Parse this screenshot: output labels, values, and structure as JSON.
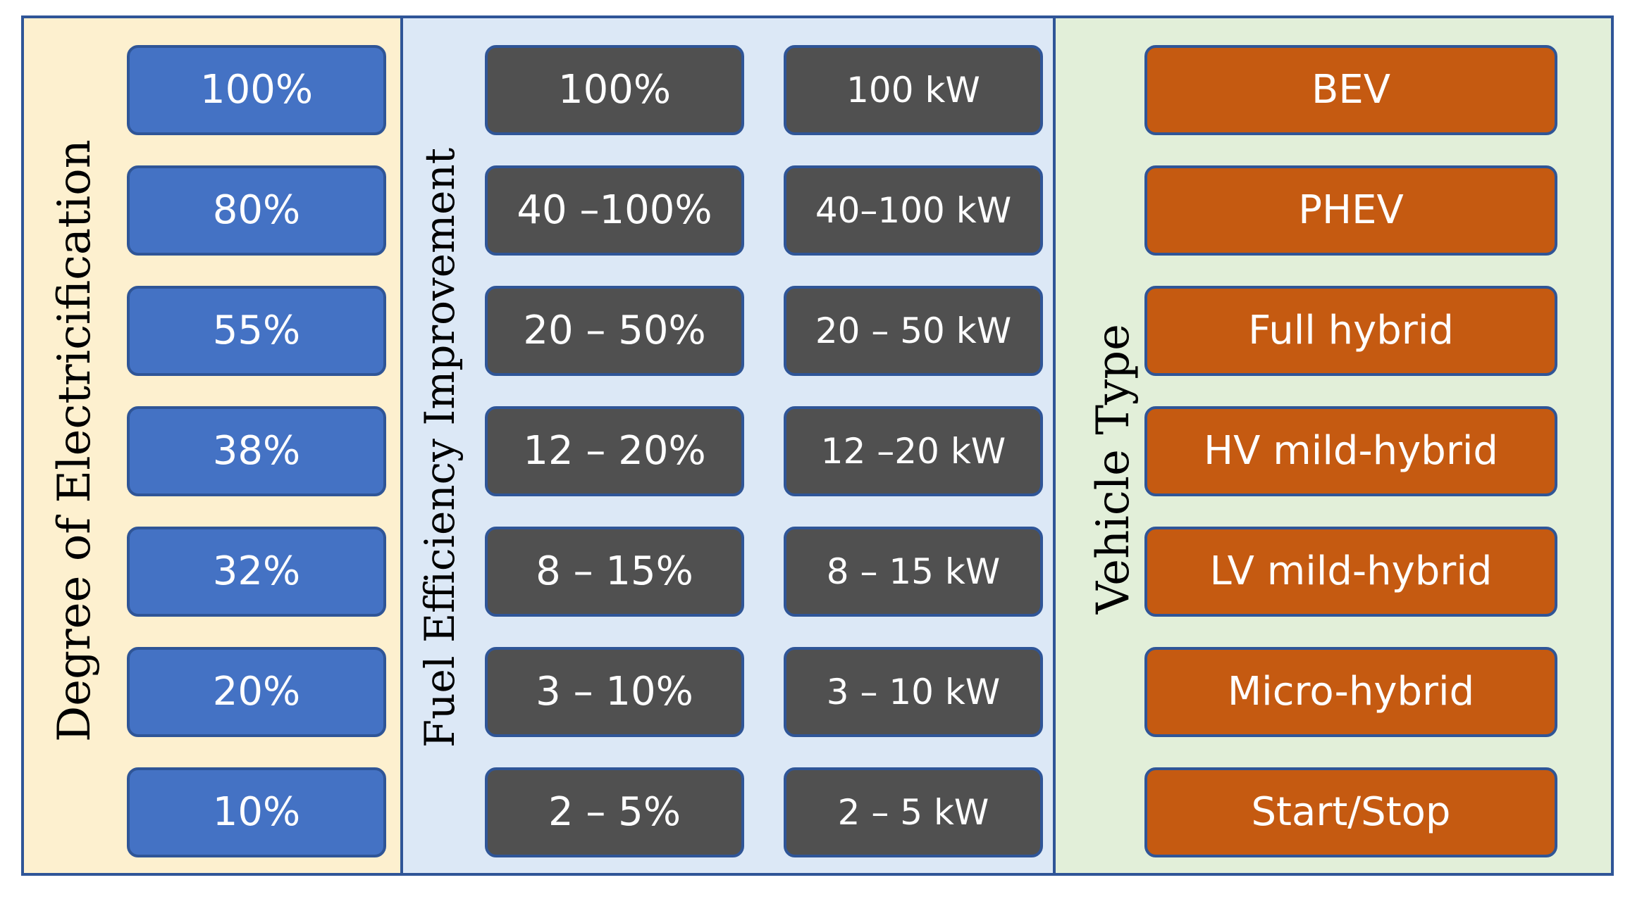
{
  "colors": {
    "border": "#2f5597",
    "panel_electrification_bg": "#fdf0cf",
    "panel_fuel_bg": "#dce8f6",
    "panel_vehicle_bg": "#e2efd9",
    "box_electrification": "#4472c4",
    "box_fuel": "#505050",
    "box_vehicle": "#c55a11"
  },
  "electrification": {
    "title": "Degree of Electricification",
    "levels": [
      "100%",
      "80%",
      "55%",
      "38%",
      "32%",
      "20%",
      "10%"
    ]
  },
  "fuel_efficiency": {
    "title": "Fuel Efficiency Improvement",
    "improvement": [
      "100%",
      "40 –100%",
      "20 – 50%",
      "12 – 20%",
      "8 – 15%",
      "3 – 10%",
      "2 – 5%"
    ],
    "power": [
      "100 kW",
      "40–100 kW",
      "20 – 50 kW",
      "12 –20 kW",
      "8 – 15 kW",
      "3 – 10 kW",
      "2 – 5 kW"
    ]
  },
  "vehicle_type": {
    "title": "Vehicle Type",
    "types": [
      "BEV",
      "PHEV",
      "Full hybrid",
      "HV mild-hybrid",
      "LV mild-hybrid",
      "Micro-hybrid",
      "Start/Stop"
    ]
  }
}
